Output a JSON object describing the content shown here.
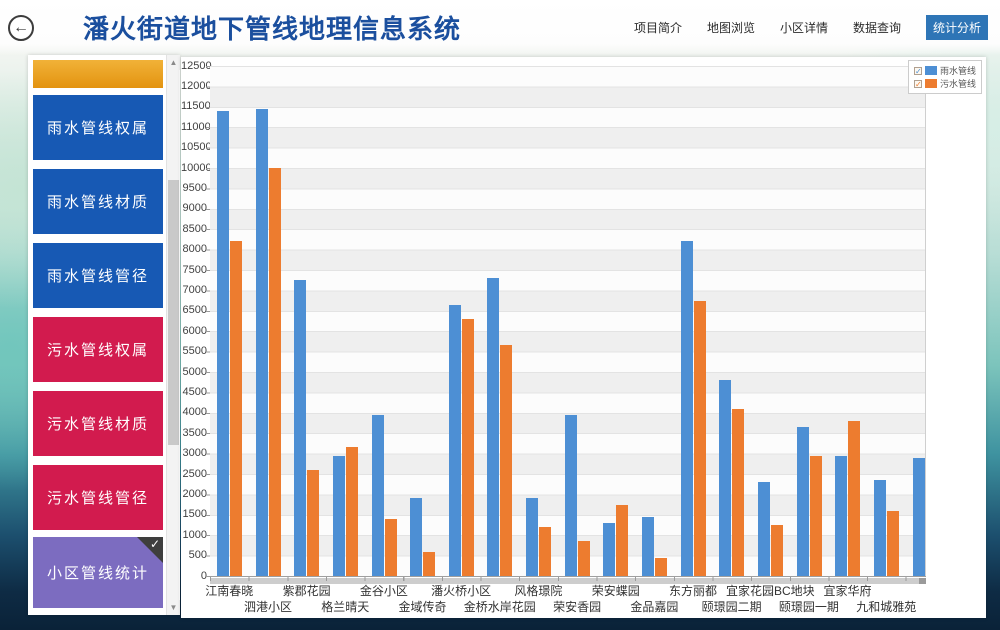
{
  "header": {
    "title": "潘火街道地下管线地理信息系统",
    "back_glyph": "←",
    "nav_items": [
      {
        "label": "项目简介"
      },
      {
        "label": "地图浏览"
      },
      {
        "label": "小区详情"
      },
      {
        "label": "数据查询"
      }
    ],
    "active_nav": "统计分析"
  },
  "sidebar": {
    "buttons": [
      {
        "label": "",
        "type": "orange-partial"
      },
      {
        "label": "雨水管线权属",
        "type": "blue"
      },
      {
        "label": "雨水管线材质",
        "type": "blue"
      },
      {
        "label": "雨水管线管径",
        "type": "blue"
      },
      {
        "label": "污水管线权属",
        "type": "red"
      },
      {
        "label": "污水管线材质",
        "type": "red"
      },
      {
        "label": "污水管线管径",
        "type": "red"
      },
      {
        "label": "小区管线统计",
        "type": "purple",
        "selected": true,
        "check_glyph": "✓"
      }
    ]
  },
  "chart_data": {
    "type": "bar",
    "title": "",
    "categories": [
      "江南春晓",
      "泗港小区",
      "紫郡花园",
      "格兰晴天",
      "金谷小区",
      "金域传奇",
      "潘火桥小区",
      "金桥水岸花园",
      "风格璟院",
      "荣安香园",
      "荣安蝶园",
      "金品嘉园",
      "东方丽都",
      "颐璟园二期",
      "宜家花园BC地块",
      "颐璟园一期",
      "宜家华府",
      "九和城雅苑",
      ""
    ],
    "series": [
      {
        "name": "雨水管线",
        "color": "#4d8fd4",
        "values": [
          11400,
          11450,
          7250,
          2950,
          3950,
          1900,
          6650,
          7300,
          1900,
          3950,
          1300,
          1450,
          8200,
          4800,
          2300,
          3650,
          2950,
          2350,
          2900
        ]
      },
      {
        "name": "污水管线",
        "color": "#ed7c2f",
        "values": [
          8200,
          10000,
          2600,
          3150,
          1400,
          600,
          6300,
          5650,
          1200,
          850,
          1750,
          450,
          6750,
          4100,
          1250,
          2950,
          3800,
          1600,
          null
        ]
      }
    ],
    "ylim": [
      0,
      12500
    ],
    "ytick_step": 500,
    "grid": "banded-horizontal",
    "legend_position": "top-right",
    "legend_checkboxes_checked": [
      true,
      true
    ]
  }
}
